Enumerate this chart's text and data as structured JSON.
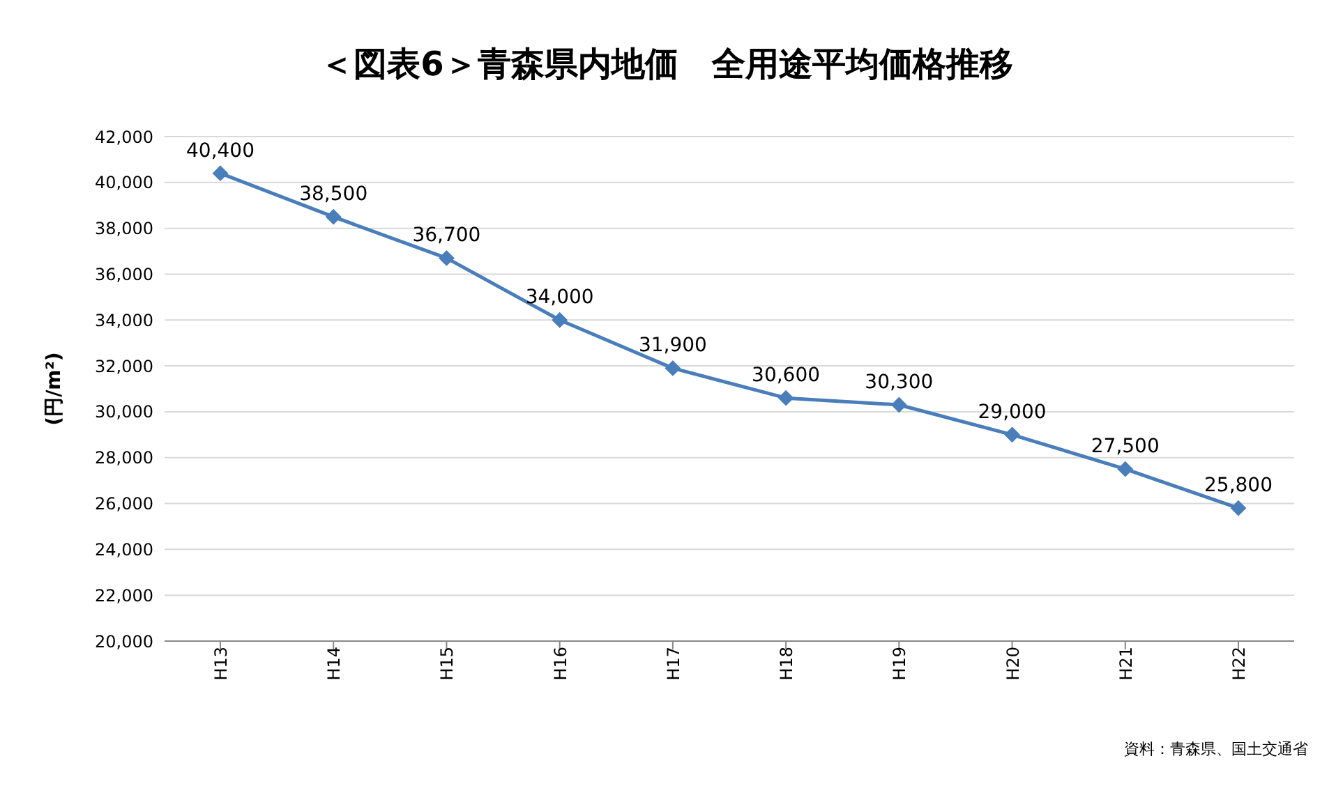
{
  "chart_data": {
    "type": "line",
    "title": "＜図表6＞青森県内地価　全用途平均価格推移",
    "ylabel": "(円/m²)",
    "categories": [
      "H13",
      "H14",
      "H15",
      "H16",
      "H17",
      "H18",
      "H19",
      "H20",
      "H21",
      "H22"
    ],
    "series": [
      {
        "color": "#4a7ebb",
        "values": [
          40400,
          38500,
          36700,
          34000,
          31900,
          30600,
          30300,
          29000,
          27500,
          25800
        ],
        "value_labels": [
          "40,400",
          "38,500",
          "36,700",
          "34,000",
          "31,900",
          "30,600",
          "30,300",
          "29,000",
          "27,500",
          "25,800"
        ]
      }
    ],
    "ylim": [
      20000,
      42000
    ],
    "yticks": [
      {
        "value": 20000,
        "label": "20,000"
      },
      {
        "value": 22000,
        "label": "22,000"
      },
      {
        "value": 24000,
        "label": "24,000"
      },
      {
        "value": 26000,
        "label": "26,000"
      },
      {
        "value": 28000,
        "label": "28,000"
      },
      {
        "value": 30000,
        "label": "30,000"
      },
      {
        "value": 32000,
        "label": "32,000"
      },
      {
        "value": 34000,
        "label": "34,000"
      },
      {
        "value": 36000,
        "label": "36,000"
      },
      {
        "value": 38000,
        "label": "38,000"
      },
      {
        "value": 40000,
        "label": "40,000"
      },
      {
        "value": 42000,
        "label": "42,000"
      }
    ],
    "grid": "y",
    "legend": false,
    "marker": "diamond",
    "line_style": "solid",
    "annotations": [
      "資料：青森県、国土交通省"
    ]
  }
}
